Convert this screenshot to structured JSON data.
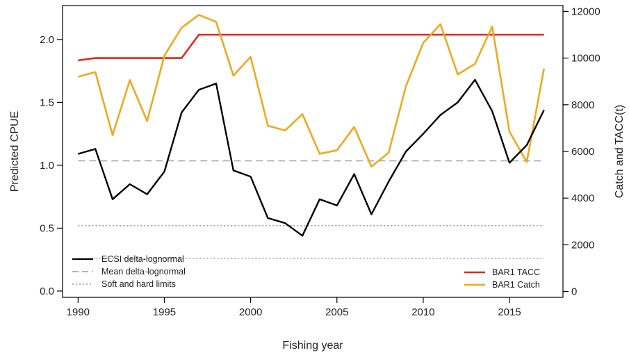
{
  "chart_data": {
    "type": "line",
    "xlabel": "Fishing year",
    "ylabel_left": "Predicted CPUE",
    "ylabel_right": "Catch and TACC(t)",
    "xlim": [
      1989.1,
      2018.1
    ],
    "ylim_left": [
      -0.05,
      2.27
    ],
    "ylim_right": [
      -250,
      12250
    ],
    "x_ticks": [
      1990,
      1995,
      2000,
      2005,
      2010,
      2015
    ],
    "y_left_ticks": [
      "0.0",
      "0.5",
      "1.0",
      "1.5",
      "2.0"
    ],
    "y_right_ticks": [
      "0",
      "2000",
      "4000",
      "6000",
      "8000",
      "10000",
      "12000"
    ],
    "years": [
      1990,
      1991,
      1992,
      1993,
      1994,
      1995,
      1996,
      1997,
      1998,
      1999,
      2000,
      2001,
      2002,
      2003,
      2004,
      2005,
      2006,
      2007,
      2008,
      2009,
      2010,
      2011,
      2012,
      2013,
      2014,
      2015,
      2016,
      2017
    ],
    "series": [
      {
        "name": "ECSI delta-lognormal",
        "axis": "left",
        "color": "#000000",
        "values": [
          1.09,
          1.13,
          0.73,
          0.85,
          0.77,
          0.95,
          1.42,
          1.6,
          1.65,
          0.96,
          0.91,
          0.58,
          0.54,
          0.44,
          0.73,
          0.68,
          0.93,
          0.61,
          0.87,
          1.11,
          1.25,
          1.4,
          1.5,
          1.68,
          1.43,
          1.02,
          1.16,
          1.44
        ]
      },
      {
        "name": "Mean delta-lognormal",
        "axis": "left",
        "color": "#9a9a9a",
        "style": "dashed",
        "values": [
          1.035
        ]
      },
      {
        "name": "Soft and hard limits",
        "axis": "left",
        "color": "#9a9a9a",
        "style": "dotted",
        "values": [
          0.52,
          0.26
        ]
      },
      {
        "name": "BAR1 TACC",
        "axis": "right",
        "color": "#e0281e",
        "values": [
          9900,
          10000,
          10000,
          10000,
          10000,
          10000,
          10000,
          11000,
          11000,
          11000,
          11000,
          11000,
          11000,
          11000,
          11000,
          11000,
          11000,
          11000,
          11000,
          11000,
          11000,
          11000,
          11000,
          11000,
          11000,
          11000,
          11000,
          11000
        ]
      },
      {
        "name": "BAR1 Catch",
        "axis": "right",
        "color": "#f0a820",
        "values": [
          9200,
          9400,
          6700,
          9050,
          7300,
          10100,
          11300,
          11850,
          11550,
          9250,
          10050,
          7100,
          6900,
          7600,
          5900,
          6050,
          7050,
          5350,
          5950,
          8800,
          10650,
          11450,
          9300,
          9750,
          11350,
          6850,
          5550,
          9550
        ]
      }
    ],
    "legends": {
      "left": [
        "ECSI delta-lognormal",
        "Mean delta-lognormal",
        "Soft and hard limits"
      ],
      "right": [
        "BAR1 TACC",
        "BAR1 Catch"
      ],
      "left_placement": "bottom-left",
      "right_placement": "bottom-right"
    },
    "grid": false
  }
}
